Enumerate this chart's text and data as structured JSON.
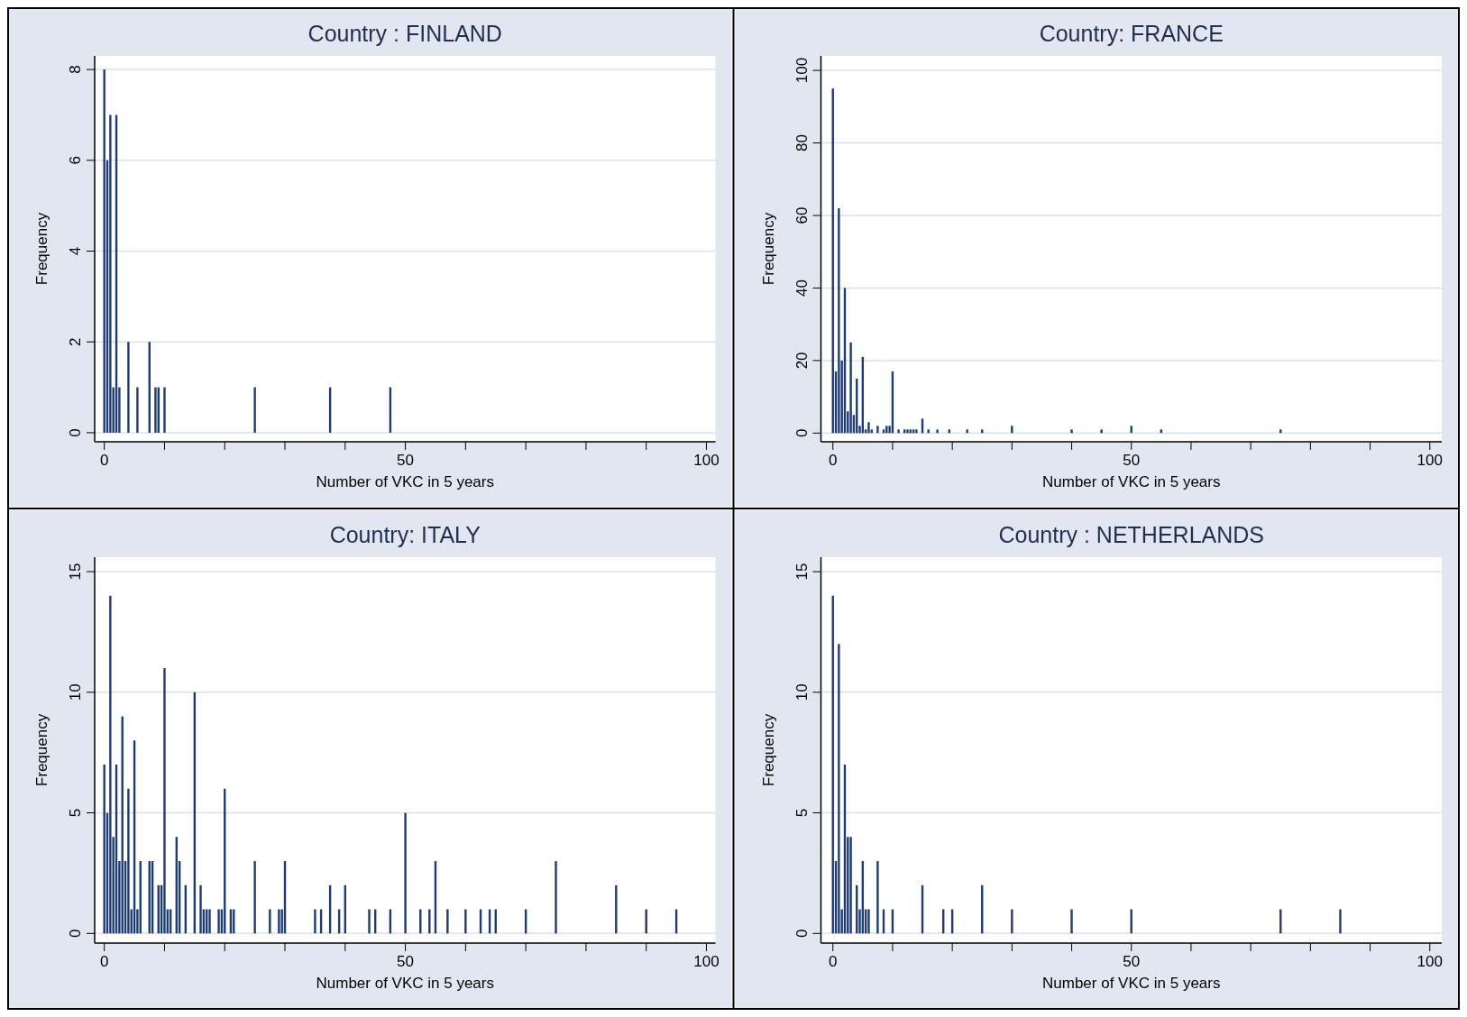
{
  "chart_data": [
    {
      "type": "bar",
      "title": "Country : FINLAND",
      "xlabel": "Number of VKC in 5 years",
      "ylabel": "Frequency",
      "color": "#1f3b73",
      "grid": "y",
      "x": [
        0,
        0.5,
        1,
        1.5,
        2,
        2.5,
        4,
        5.5,
        7.5,
        8.5,
        9,
        10,
        25,
        37.5,
        47.5
      ],
      "values": [
        8,
        6,
        7,
        1,
        7,
        1,
        2,
        1,
        2,
        1,
        1,
        1,
        1,
        1,
        1
      ],
      "xlim": [
        -1.6,
        101.5
      ],
      "ylim": [
        -0.2,
        8.3
      ],
      "xticks": [
        0,
        {
          "value": 10,
          "label": null
        },
        {
          "value": 20,
          "label": null
        },
        {
          "value": 30,
          "label": null
        },
        {
          "value": 40,
          "label": null
        },
        50,
        {
          "value": 60,
          "label": null
        },
        {
          "value": 70,
          "label": null
        },
        {
          "value": 80,
          "label": null
        },
        {
          "value": 90,
          "label": null
        },
        100
      ],
      "yticks": [
        0,
        2,
        4,
        6,
        8
      ]
    },
    {
      "type": "bar",
      "title": "Country: FRANCE",
      "xlabel": "Number of VKC in 5 years",
      "ylabel": "Frequency",
      "color": "#1f3b73",
      "grid": "y",
      "x": [
        0,
        0.5,
        1,
        1.5,
        2,
        2.5,
        3,
        3.5,
        4,
        4.5,
        5,
        5.5,
        6,
        6.5,
        7.5,
        8.5,
        9,
        9.5,
        10,
        11,
        12,
        12.5,
        13,
        13.5,
        14,
        15,
        16,
        17.5,
        19.5,
        22.5,
        25,
        30,
        40,
        45,
        50,
        55,
        75
      ],
      "values": [
        95,
        17,
        62,
        20,
        40,
        6,
        25,
        5,
        15,
        2,
        21,
        1,
        3,
        1,
        2,
        1,
        2,
        2,
        17,
        1,
        1,
        1,
        1,
        1,
        1,
        4,
        1,
        1,
        1,
        1,
        1,
        2,
        1,
        1,
        2,
        1,
        1
      ],
      "xlim": [
        -2,
        102
      ],
      "ylim": [
        -2.4,
        104
      ],
      "xticks": [
        0,
        {
          "value": 10,
          "label": null
        },
        {
          "value": 20,
          "label": null
        },
        {
          "value": 30,
          "label": null
        },
        {
          "value": 40,
          "label": null
        },
        50,
        {
          "value": 60,
          "label": null
        },
        {
          "value": 70,
          "label": null
        },
        {
          "value": 80,
          "label": null
        },
        {
          "value": 90,
          "label": null
        },
        100
      ],
      "yticks": [
        0,
        20,
        40,
        60,
        80,
        100
      ]
    },
    {
      "type": "bar",
      "title": "Country: ITALY",
      "xlabel": "Number of VKC in 5 years",
      "ylabel": "Frequency",
      "color": "#1f3b73",
      "grid": "y",
      "x": [
        0,
        0.5,
        1,
        1.5,
        2,
        2.5,
        3,
        3.5,
        4,
        4.5,
        5,
        5.5,
        6,
        7.5,
        8,
        9,
        9.5,
        10,
        10.5,
        11,
        12,
        12.5,
        13.5,
        15,
        16,
        16.5,
        17,
        17.5,
        19,
        19.5,
        20,
        21,
        21.5,
        25,
        27.5,
        29,
        29.5,
        30,
        35,
        36,
        37.5,
        39,
        40,
        44,
        45,
        47.5,
        50,
        52.5,
        54,
        55,
        57,
        60,
        62.5,
        64,
        65,
        70,
        75,
        85,
        90,
        95
      ],
      "values": [
        7,
        5,
        14,
        4,
        7,
        3,
        9,
        3,
        6,
        1,
        8,
        1,
        3,
        3,
        3,
        2,
        2,
        11,
        1,
        1,
        4,
        3,
        2,
        10,
        2,
        1,
        1,
        1,
        1,
        1,
        6,
        1,
        1,
        3,
        1,
        1,
        1,
        3,
        1,
        1,
        2,
        1,
        2,
        1,
        1,
        1,
        5,
        1,
        1,
        3,
        1,
        1,
        1,
        1,
        1,
        1,
        3,
        2,
        1,
        1
      ],
      "xlim": [
        -1.6,
        101.5
      ],
      "ylim": [
        -0.4,
        15.6
      ],
      "xticks": [
        0,
        {
          "value": 10,
          "label": null
        },
        {
          "value": 20,
          "label": null
        },
        {
          "value": 30,
          "label": null
        },
        {
          "value": 40,
          "label": null
        },
        50,
        {
          "value": 60,
          "label": null
        },
        {
          "value": 70,
          "label": null
        },
        {
          "value": 80,
          "label": null
        },
        {
          "value": 90,
          "label": null
        },
        100
      ],
      "yticks": [
        0,
        5,
        10,
        15
      ]
    },
    {
      "type": "bar",
      "title": "Country : NETHERLANDS",
      "xlabel": "Number of VKC in 5 years",
      "ylabel": "Frequency",
      "color": "#1f3b73",
      "grid": "y",
      "x": [
        0,
        0.5,
        1,
        1.5,
        2,
        2.5,
        3,
        4,
        4.5,
        5,
        5.5,
        6,
        7.5,
        8.5,
        10,
        15,
        18.5,
        20,
        25,
        30,
        40,
        50,
        75,
        85
      ],
      "values": [
        14,
        3,
        12,
        1,
        7,
        4,
        4,
        2,
        1,
        3,
        1,
        1,
        3,
        1,
        1,
        2,
        1,
        1,
        2,
        1,
        1,
        1,
        1,
        1
      ],
      "xlim": [
        -2,
        102
      ],
      "ylim": [
        -0.4,
        15.6
      ],
      "xticks": [
        0,
        {
          "value": 10,
          "label": null
        },
        {
          "value": 20,
          "label": null
        },
        {
          "value": 30,
          "label": null
        },
        {
          "value": 40,
          "label": null
        },
        50,
        {
          "value": 60,
          "label": null
        },
        {
          "value": 70,
          "label": null
        },
        {
          "value": 80,
          "label": null
        },
        {
          "value": 90,
          "label": null
        },
        100
      ],
      "yticks": [
        0,
        5,
        10,
        15
      ]
    }
  ]
}
